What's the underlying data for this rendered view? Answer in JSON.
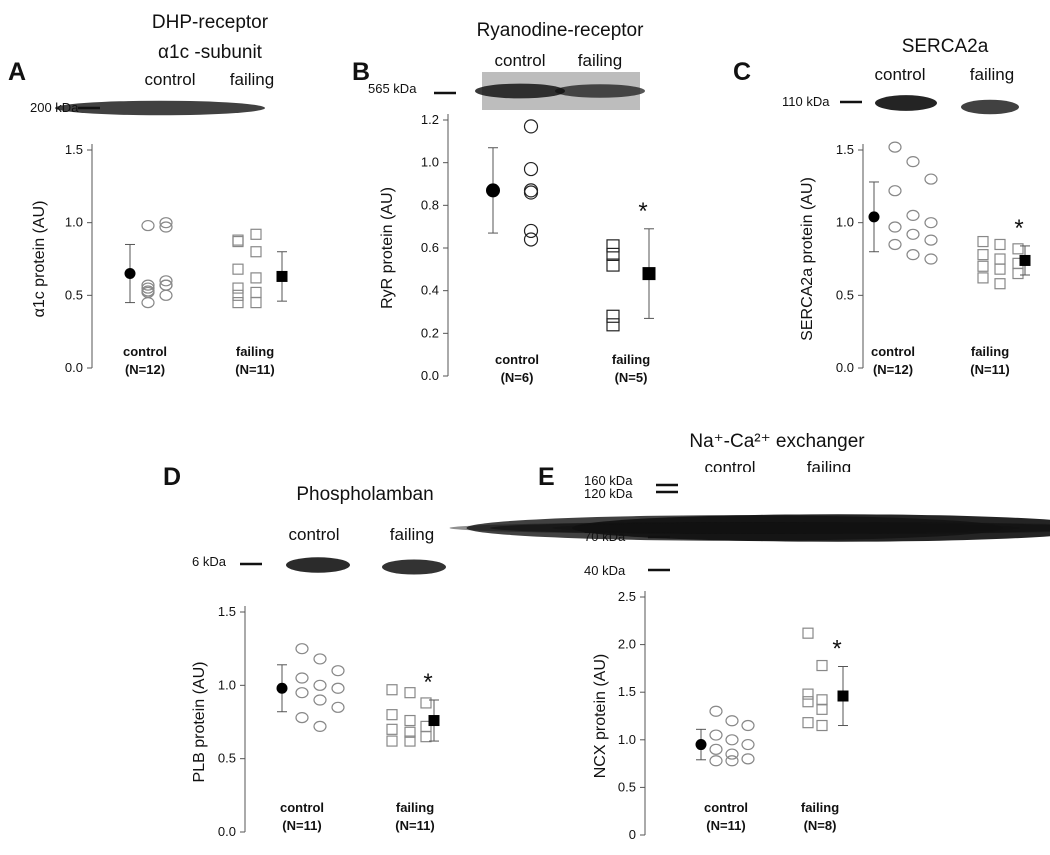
{
  "figure": {
    "panels": [
      {
        "letter": "A",
        "title_lines": [
          "DHP-receptor",
          "α1c  -subunit"
        ],
        "blot": {
          "lanes": [
            "control",
            "failing"
          ],
          "markers": [
            "200 kDa"
          ],
          "bands": [
            [
              0.75,
              0.8
            ]
          ]
        },
        "star": ""
      },
      {
        "letter": "B",
        "title_lines": [
          "Ryanodine-receptor"
        ],
        "blot": {
          "lanes": [
            "control",
            "failing"
          ],
          "markers": [
            "565 kDa"
          ],
          "bands": [
            [
              0.8,
              0.6
            ]
          ]
        },
        "star": "*"
      },
      {
        "letter": "C",
        "title_lines": [
          "SERCA2a"
        ],
        "blot": {
          "lanes": [
            "control",
            "failing"
          ],
          "markers": [
            "110 kDa"
          ],
          "bands": [
            [
              0.95,
              0.75
            ]
          ]
        },
        "star": "*"
      },
      {
        "letter": "D",
        "title_lines": [
          "Phospholamban"
        ],
        "blot": {
          "lanes": [
            "control",
            "failing"
          ],
          "markers": [
            "6 kDa"
          ],
          "bands": [
            [
              0.9,
              0.85
            ]
          ]
        },
        "star": "*"
      },
      {
        "letter": "E",
        "title_lines": [
          "Na⁺-Ca²⁺ exchanger"
        ],
        "blot": {
          "lanes": [
            "control",
            "failing"
          ],
          "markers": [
            "160 kDa",
            "120 kDa",
            "70 kDa",
            "40 kDa"
          ],
          "bands": [
            [
              0.55,
              0.65
            ],
            [
              0.75,
              0.95
            ],
            [
              0.2,
              0.25
            ]
          ]
        },
        "star": "*"
      }
    ]
  },
  "chart_data": [
    {
      "type": "scatter",
      "ylabel": "α1c protein (AU)",
      "ylim": [
        0,
        1.5
      ],
      "yticks": [
        "0.0",
        "0.5",
        "1.0",
        "1.5"
      ],
      "categories": [
        "control",
        "failing"
      ],
      "n_labels": [
        "(N=12)",
        "(N=11)"
      ],
      "series": [
        {
          "values": [
            0.55,
            0.6,
            0.57,
            0.97,
            0.52,
            0.57,
            0.45,
            1.0,
            0.53,
            0.57,
            0.98,
            0.5
          ]
        },
        {
          "values": [
            0.87,
            0.52,
            0.45,
            0.8,
            0.5,
            0.62,
            0.88,
            0.45,
            0.55,
            0.92,
            0.68
          ]
        }
      ],
      "means": [
        0.65,
        0.63
      ],
      "errors": [
        0.2,
        0.17
      ]
    },
    {
      "type": "scatter",
      "ylabel": "RyR protein (AU)",
      "ylim": [
        0,
        1.2
      ],
      "yticks": [
        "0.0",
        "0.2",
        "0.4",
        "0.6",
        "0.8",
        "1.0",
        "1.2"
      ],
      "categories": [
        "control",
        "failing"
      ],
      "n_labels": [
        "(N=6)",
        "(N=5)"
      ],
      "series": [
        {
          "values": [
            1.17,
            0.97,
            0.87,
            0.86,
            0.68,
            0.64
          ]
        },
        {
          "values": [
            0.61,
            0.57,
            0.52,
            0.28,
            0.24
          ]
        }
      ],
      "means": [
        0.87,
        0.48
      ],
      "errors": [
        0.2,
        0.21
      ]
    },
    {
      "type": "scatter",
      "ylabel": "SERCA2a protein (AU)",
      "ylim": [
        0,
        1.5
      ],
      "yticks": [
        "0.0",
        "0.5",
        "1.0",
        "1.5"
      ],
      "categories": [
        "control",
        "failing"
      ],
      "n_labels": [
        "(N=12)",
        "(N=11)"
      ],
      "series": [
        {
          "values": [
            1.52,
            1.42,
            1.3,
            1.22,
            1.05,
            1.0,
            0.97,
            0.92,
            0.88,
            0.85,
            0.78,
            0.75
          ]
        },
        {
          "values": [
            0.87,
            0.85,
            0.82,
            0.78,
            0.75,
            0.72,
            0.7,
            0.68,
            0.65,
            0.62,
            0.58
          ]
        }
      ],
      "means": [
        1.04,
        0.74
      ],
      "errors": [
        0.24,
        0.1
      ]
    },
    {
      "type": "scatter",
      "ylabel": "PLB protein (AU)",
      "ylim": [
        0,
        1.5
      ],
      "yticks": [
        "0.0",
        "0.5",
        "1.0",
        "1.5"
      ],
      "categories": [
        "control",
        "failing"
      ],
      "n_labels": [
        "(N=11)",
        "(N=11)"
      ],
      "series": [
        {
          "values": [
            1.25,
            1.18,
            1.1,
            1.05,
            1.0,
            0.98,
            0.95,
            0.9,
            0.85,
            0.78,
            0.72
          ]
        },
        {
          "values": [
            0.97,
            0.95,
            0.88,
            0.8,
            0.76,
            0.72,
            0.7,
            0.68,
            0.65,
            0.62,
            0.62
          ]
        }
      ],
      "means": [
        0.98,
        0.76
      ],
      "errors": [
        0.16,
        0.14
      ]
    },
    {
      "type": "scatter",
      "ylabel": "NCX protein (AU)",
      "ylim": [
        0,
        2.5
      ],
      "yticks": [
        "0",
        "0.5",
        "1.0",
        "1.5",
        "2.0",
        "2.5"
      ],
      "categories": [
        "control",
        "failing"
      ],
      "n_labels": [
        "(N=11)",
        "(N=8)"
      ],
      "series": [
        {
          "values": [
            1.3,
            1.2,
            1.15,
            1.05,
            1.0,
            0.95,
            0.9,
            0.85,
            0.8,
            0.78,
            0.78
          ]
        },
        {
          "values": [
            2.12,
            1.78,
            1.48,
            1.42,
            1.4,
            1.32,
            1.18,
            1.15
          ]
        }
      ],
      "means": [
        0.95,
        1.46
      ],
      "errors": [
        0.16,
        0.31
      ]
    }
  ]
}
